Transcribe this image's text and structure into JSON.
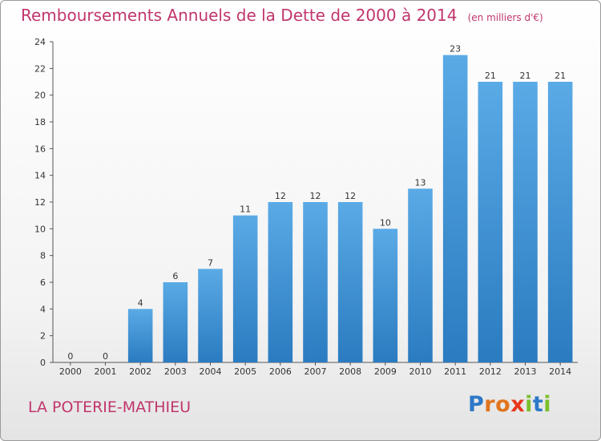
{
  "chart_data": {
    "type": "bar",
    "title": "Remboursements Annuels de la Dette de 2000 à 2014",
    "unit": "(en milliers d'€)",
    "categories": [
      "2000",
      "2001",
      "2002",
      "2003",
      "2004",
      "2005",
      "2006",
      "2007",
      "2008",
      "2009",
      "2010",
      "2011",
      "2012",
      "2013",
      "2014"
    ],
    "values": [
      0,
      0,
      4,
      6,
      7,
      11,
      12,
      12,
      12,
      10,
      13,
      23,
      21,
      21,
      21
    ],
    "ylim": [
      0,
      24
    ],
    "yticks": [
      0,
      2,
      4,
      6,
      8,
      10,
      12,
      14,
      16,
      18,
      20,
      22,
      24
    ],
    "grid": false,
    "bar_color": "#4a9fe0",
    "bar_color_dark": "#2a7bc0"
  },
  "footer": {
    "commune": "LA POTERIE-MATHIEU",
    "brand_letters": [
      "P",
      "r",
      "o",
      "x",
      "i",
      "t",
      "i"
    ],
    "brand_colors": [
      "#2d78c8",
      "#e0751e",
      "#e0751e",
      "#e8361c",
      "#7bbf2a",
      "#2d78c8",
      "#7bbf2a"
    ]
  },
  "colors": {
    "title": "#c0366d"
  }
}
